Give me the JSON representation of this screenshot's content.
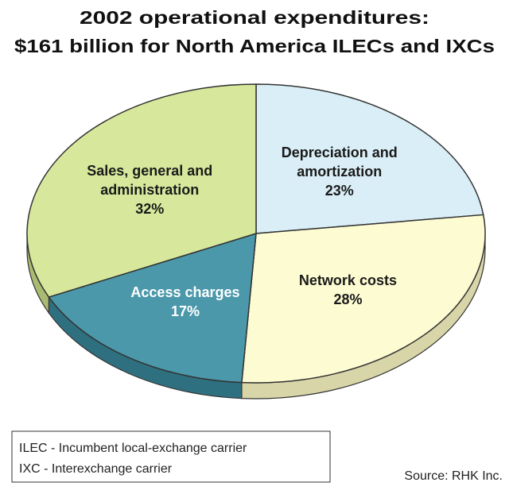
{
  "chart_data": {
    "type": "pie",
    "title": "2002 operational expenditures:",
    "subtitle": "$161 billion for North America ILECs and IXCs",
    "categories": [
      "Depreciation and amortization",
      "Network costs",
      "Access charges",
      "Sales, general and administration"
    ],
    "values": [
      23,
      28,
      17,
      32
    ],
    "value_labels": [
      "23%",
      "28%",
      "17%",
      "32%"
    ],
    "colors": [
      "#d9eef6",
      "#fdfbd2",
      "#4b98aa",
      "#d7e89c"
    ],
    "side_colors": [
      "#a9c4cc",
      "#d8d6a8",
      "#2f7080",
      "#a9bb70"
    ],
    "label_colors": [
      "#1a1a1a",
      "#1a1a1a",
      "#ffffff",
      "#1a1a1a"
    ],
    "notes": [
      "ILEC - Incumbent local-exchange carrier",
      "IXC - Interexchange carrier"
    ],
    "source": "Source: RHK Inc."
  }
}
